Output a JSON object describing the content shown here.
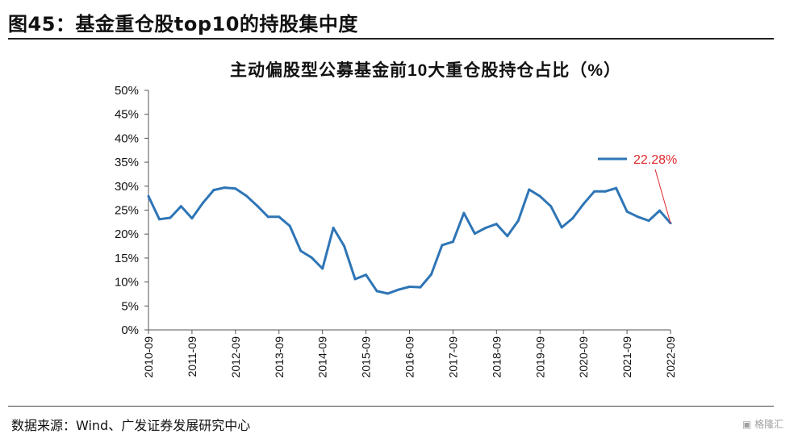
{
  "figure": {
    "title": "图45：基金重仓股top10的持股集中度",
    "source": "数据来源：Wind、广发证券发展研究中心",
    "watermark": "格隆汇"
  },
  "chart_data": {
    "type": "line",
    "title": "主动偏股型公募基金前10大重仓股持仓占比（%）",
    "xlabel": "",
    "ylabel": "",
    "ylim": [
      0,
      50
    ],
    "yticks": [
      "0%",
      "5%",
      "10%",
      "15%",
      "20%",
      "25%",
      "30%",
      "35%",
      "40%",
      "45%",
      "50%"
    ],
    "xticks": [
      "2010-09",
      "2011-09",
      "2012-09",
      "2013-09",
      "2014-09",
      "2015-09",
      "2016-09",
      "2017-09",
      "2018-09",
      "2019-09",
      "2020-09",
      "2021-09",
      "2022-09"
    ],
    "grid": false,
    "legend": "none",
    "color": "#2E75B6",
    "annotation_color": "#E0282E",
    "series": [
      {
        "name": "",
        "values": [
          27.9,
          23.1,
          23.4,
          25.8,
          23.3,
          26.5,
          29.2,
          29.7,
          29.5,
          28.0,
          25.9,
          23.6,
          23.6,
          21.7,
          16.5,
          15.1,
          12.8,
          21.3,
          17.5,
          10.6,
          11.5,
          8.1,
          7.6,
          8.4,
          9.0,
          8.9,
          11.6,
          17.7,
          18.4,
          24.4,
          20.1,
          21.3,
          22.1,
          19.6,
          22.8,
          29.3,
          27.9,
          25.8,
          21.4,
          23.3,
          26.3,
          28.9,
          28.9,
          29.6,
          24.7,
          23.6,
          22.8,
          24.9,
          22.28
        ]
      }
    ],
    "annotation": {
      "label": "22.28%"
    }
  }
}
